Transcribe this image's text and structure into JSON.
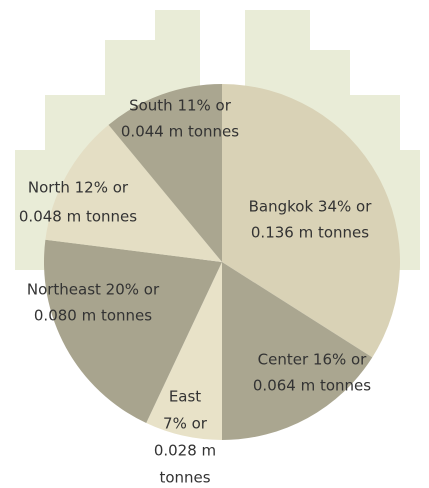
{
  "chart_data": {
    "type": "pie",
    "values": [
      34,
      16,
      7,
      20,
      12,
      11
    ],
    "value_labels": [
      [
        "Bangkok 34% or",
        "0.136 m tonnes"
      ],
      [
        "Center 16% or",
        "0.064 m tonnes"
      ],
      [
        "East",
        "7% or",
        "0.028 m",
        "tonnes"
      ],
      [
        "Northeast 20% or",
        "0.080 m tonnes"
      ],
      [
        "North 12% or",
        "0.048 m tonnes"
      ],
      [
        "South 11% or",
        "0.044 m tonnes"
      ]
    ],
    "colors": [
      "#d9d2b6",
      "#aaa690",
      "#e8e2c8",
      "#a8a48e",
      "#e4dec4",
      "#aaa690"
    ]
  }
}
